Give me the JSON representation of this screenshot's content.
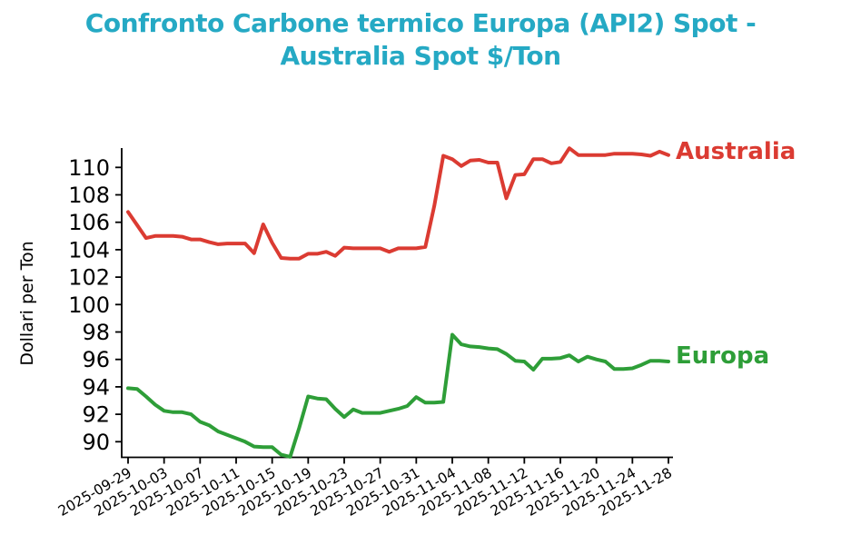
{
  "title": {
    "text": "Confronto Carbone termico Europa (API2) Spot - Australia Spot $/Ton",
    "line1": "Confronto Carbone termico Europa (API2) Spot -",
    "line2": "Australia Spot $/Ton",
    "color": "#25a9c4"
  },
  "axis": {
    "ylabel": "Dollari per Ton"
  },
  "series_end_labels": {
    "australia": "Australia",
    "europa": "Europa"
  },
  "chart_data": {
    "type": "line",
    "title": "Confronto Carbone termico Europa (API2) Spot - Australia Spot $/Ton",
    "xlabel": "",
    "ylabel": "Dollari per Ton",
    "ylim": [
      88.9,
      111.4
    ],
    "yticks": [
      90,
      92,
      94,
      96,
      98,
      100,
      102,
      104,
      106,
      108,
      110
    ],
    "grid": false,
    "legend_position": "line-end-labels",
    "x": [
      "2025-09-29",
      "2025-09-30",
      "2025-10-01",
      "2025-10-02",
      "2025-10-03",
      "2025-10-04",
      "2025-10-05",
      "2025-10-06",
      "2025-10-07",
      "2025-10-08",
      "2025-10-09",
      "2025-10-10",
      "2025-10-11",
      "2025-10-12",
      "2025-10-13",
      "2025-10-14",
      "2025-10-15",
      "2025-10-16",
      "2025-10-17",
      "2025-10-18",
      "2025-10-19",
      "2025-10-20",
      "2025-10-21",
      "2025-10-22",
      "2025-10-23",
      "2025-10-24",
      "2025-10-25",
      "2025-10-26",
      "2025-10-27",
      "2025-10-28",
      "2025-10-29",
      "2025-10-30",
      "2025-10-31",
      "2025-11-01",
      "2025-11-02",
      "2025-11-03",
      "2025-11-04",
      "2025-11-05",
      "2025-11-06",
      "2025-11-07",
      "2025-11-08",
      "2025-11-09",
      "2025-11-10",
      "2025-11-11",
      "2025-11-12",
      "2025-11-13",
      "2025-11-14",
      "2025-11-15",
      "2025-11-16",
      "2025-11-17",
      "2025-11-18",
      "2025-11-19",
      "2025-11-20",
      "2025-11-21",
      "2025-11-22",
      "2025-11-23",
      "2025-11-24",
      "2025-11-25",
      "2025-11-26",
      "2025-11-27",
      "2025-11-28"
    ],
    "xtick_labels": [
      "2025-09-29",
      "2025-10-03",
      "2025-10-07",
      "2025-10-11",
      "2025-10-15",
      "2025-10-19",
      "2025-10-23",
      "2025-10-27",
      "2025-10-31",
      "2025-11-04",
      "2025-11-08",
      "2025-11-12",
      "2025-11-16",
      "2025-11-20",
      "2025-11-24",
      "2025-11-28"
    ],
    "xtick_every": 4,
    "series": [
      {
        "name": "Australia",
        "color": "#db3b32",
        "values": [
          106.75,
          105.8,
          104.85,
          105.0,
          105.0,
          105.0,
          104.95,
          104.75,
          104.75,
          104.55,
          104.4,
          104.45,
          104.45,
          104.45,
          103.75,
          105.85,
          104.5,
          103.4,
          103.35,
          103.35,
          103.7,
          103.7,
          103.85,
          103.55,
          104.15,
          104.1,
          104.1,
          104.1,
          104.1,
          103.85,
          104.1,
          104.1,
          104.1,
          104.2,
          107.2,
          110.85,
          110.6,
          110.1,
          110.5,
          110.55,
          110.35,
          110.35,
          107.75,
          109.45,
          109.5,
          110.6,
          110.6,
          110.3,
          110.4,
          111.4,
          110.9,
          110.9,
          110.9,
          110.9,
          111.0,
          111.0,
          111.0,
          110.95,
          110.85,
          111.15,
          110.9
        ]
      },
      {
        "name": "Europa",
        "color": "#2e9e38",
        "values": [
          93.9,
          93.85,
          93.3,
          92.7,
          92.25,
          92.15,
          92.15,
          92.0,
          91.45,
          91.2,
          90.75,
          90.5,
          90.25,
          90.0,
          89.65,
          89.6,
          89.6,
          89.05,
          88.9,
          91.0,
          93.3,
          93.15,
          93.1,
          92.4,
          91.8,
          92.35,
          92.1,
          92.1,
          92.1,
          92.25,
          92.4,
          92.6,
          93.25,
          92.85,
          92.85,
          92.9,
          97.8,
          97.1,
          96.95,
          96.9,
          96.8,
          96.75,
          96.4,
          95.9,
          95.85,
          95.25,
          96.05,
          96.05,
          96.1,
          96.3,
          95.85,
          96.2,
          96.0,
          95.85,
          95.3,
          95.3,
          95.35,
          95.6,
          95.9,
          95.9,
          95.85
        ]
      }
    ]
  }
}
